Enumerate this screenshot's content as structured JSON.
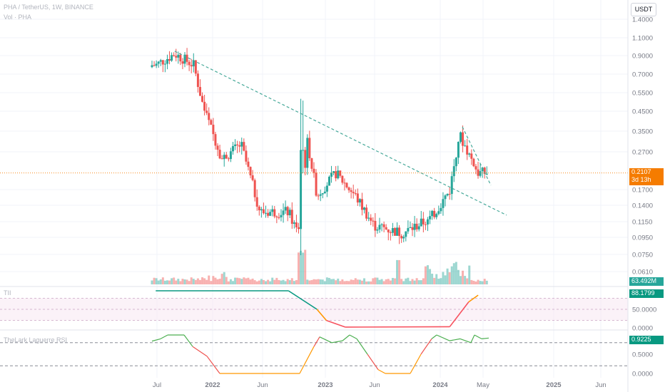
{
  "header": {
    "symbol_line": "PHA / TetherUS, 1W, BINANCE",
    "volume_line": "Vol · PHA",
    "currency_button": "USDT"
  },
  "price_badge": {
    "price": "0.2107",
    "countdown": "3d 13h"
  },
  "volume_badge": "63.492M",
  "tii_badge": "88.1799",
  "rsi_badge": "0.9225",
  "colors": {
    "up": "#26a69a",
    "down": "#ef5350",
    "trend": "#48a99a",
    "tii_up": "#089981",
    "tii_mid": "#ff9800",
    "tii_down": "#f7525f",
    "price_tag": "#f57c00"
  },
  "chart_data": [
    {
      "type": "candlestick",
      "title": "PHA / TetherUS, 1W, BINANCE",
      "scale": "log",
      "y_ticks": [
        "1.4000",
        "1.1000",
        "0.9000",
        "0.7000",
        "0.5500",
        "0.4500",
        "0.3500",
        "0.2700",
        "0.2107",
        "0.1700",
        "0.1400",
        "0.1150",
        "0.0950",
        "0.0750",
        "0.0610"
      ],
      "x_ticks": [
        "Jul",
        "2022",
        "Jun",
        "2023",
        "Jun",
        "2024",
        "May",
        "2025",
        "Jun"
      ],
      "approximate_path": [
        {
          "date": "2021-07",
          "price": 0.8
        },
        {
          "date": "2021-09",
          "price": 0.92
        },
        {
          "date": "2021-11",
          "price": 0.8
        },
        {
          "date": "2021-12",
          "price": 0.48
        },
        {
          "date": "2022-02",
          "price": 0.25
        },
        {
          "date": "2022-04",
          "price": 0.3
        },
        {
          "date": "2022-06",
          "price": 0.13
        },
        {
          "date": "2022-09",
          "price": 0.13
        },
        {
          "date": "2022-10",
          "price": 0.1
        },
        {
          "date": "2022-11",
          "price": 0.31
        },
        {
          "date": "2022-12",
          "price": 0.16
        },
        {
          "date": "2023-02",
          "price": 0.21
        },
        {
          "date": "2023-04",
          "price": 0.16
        },
        {
          "date": "2023-06",
          "price": 0.11
        },
        {
          "date": "2023-09",
          "price": 0.1
        },
        {
          "date": "2023-12",
          "price": 0.12
        },
        {
          "date": "2024-02",
          "price": 0.17
        },
        {
          "date": "2024-03",
          "price": 0.34
        },
        {
          "date": "2024-05",
          "price": 0.2107
        }
      ],
      "trendline": {
        "from": {
          "date": "2021-09",
          "price": 0.95
        },
        "to": {
          "date": "2024-08",
          "price": 0.125
        }
      },
      "last_price": 0.2107
    },
    {
      "type": "bar",
      "title": "Vol · PHA",
      "series": [
        {
          "name": "Vol",
          "last_value": "63.492M"
        }
      ]
    },
    {
      "type": "line",
      "title": "TII",
      "y_ticks": [
        "88.1799",
        "50.0000",
        "0.0000"
      ],
      "bands": [
        80,
        50,
        20
      ],
      "last_value": 88.1799,
      "approximate_path": [
        {
          "date": "2021-07",
          "value": 100
        },
        {
          "date": "2022-09",
          "value": 100
        },
        {
          "date": "2022-12",
          "value": 50
        },
        {
          "date": "2023-01",
          "value": 20
        },
        {
          "date": "2023-03",
          "value": 2
        },
        {
          "date": "2024-02",
          "value": 3
        },
        {
          "date": "2024-04",
          "value": 70
        },
        {
          "date": "2024-05",
          "value": 88.1799
        }
      ]
    },
    {
      "type": "line",
      "title": "TheLark Laguerre RSI",
      "y_ticks": [
        "0.9225",
        "0.5000",
        "0.0000"
      ],
      "levels": [
        0.8,
        0.2
      ],
      "last_value": 0.9225
    }
  ]
}
